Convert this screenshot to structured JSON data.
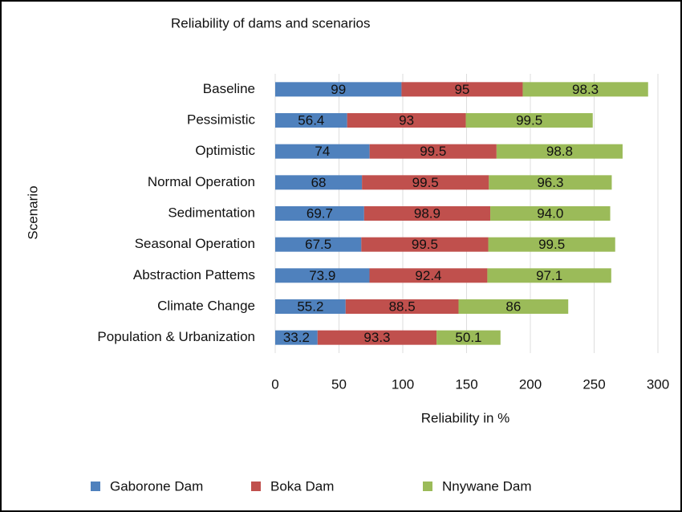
{
  "chart_data": {
    "type": "stacked-bar-horizontal",
    "title": "Reliability of dams and scenarios",
    "x_label": "Reliability in %",
    "y_label": "Scenario",
    "categories": [
      "Baseline",
      "Pessimistic",
      "Optimistic",
      "Normal Operation",
      "Sedimentation",
      "Seasonal Operation",
      "Abstraction Pattems",
      "Climate Change",
      "Population & Urbanization"
    ],
    "series": [
      {
        "name": "Gaborone Dam",
        "color": "#4f81bd",
        "values": [
          99,
          56.4,
          74,
          68,
          69.7,
          67.5,
          73.9,
          55.2,
          33.2
        ]
      },
      {
        "name": "Boka Dam",
        "color": "#c0504d",
        "values": [
          95,
          93,
          99.5,
          99.5,
          98.9,
          99.5,
          92.4,
          88.5,
          93.3
        ]
      },
      {
        "name": "Nnywane Dam",
        "color": "#9bbb59",
        "values": [
          98.3,
          99.5,
          98.8,
          96.3,
          94.0,
          99.5,
          97.1,
          86,
          50.1
        ],
        "value_labels": [
          "98.3",
          "99.5",
          "98.8",
          "96.3",
          "94.0",
          "99.5",
          "97.1",
          "86",
          "50.1"
        ]
      }
    ],
    "xlim": [
      0,
      300
    ],
    "xticks": [
      0,
      50,
      100,
      150,
      200,
      250,
      300
    ],
    "grid": true,
    "legend": "bottom"
  }
}
